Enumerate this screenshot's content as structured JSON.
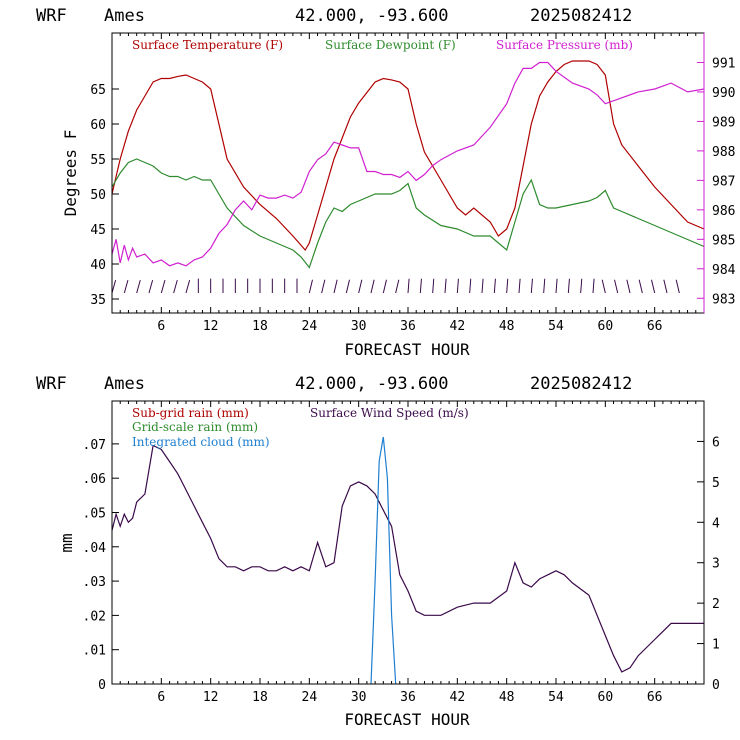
{
  "charts": [
    {
      "header": {
        "model": "WRF",
        "site": "Ames",
        "coords": "42.000, -93.600",
        "init": "2025082412"
      },
      "xlabel": "FORECAST HOUR",
      "ylabel_left": "Degrees F",
      "legend": [
        {
          "label": "Surface Temperature (F)",
          "color": "#b00000"
        },
        {
          "label": "Surface Dewpoint (F)",
          "color": "#2e8b2e"
        },
        {
          "label": "Surface Pressure (mb)",
          "color": "#d020d0"
        }
      ]
    },
    {
      "header": {
        "model": "WRF",
        "site": "Ames",
        "coords": "42.000, -93.600",
        "init": "2025082412"
      },
      "xlabel": "FORECAST HOUR",
      "ylabel_left": "mm",
      "legend": [
        {
          "label": "Sub-grid rain (mm)",
          "color": "#b00000"
        },
        {
          "label": "Grid-scale rain (mm)",
          "color": "#2e8b2e"
        },
        {
          "label": "Integrated cloud (mm)",
          "color": "#1e7fd0"
        },
        {
          "label": "Surface Wind Speed (m/s)",
          "color": "#3a0a4a"
        }
      ]
    }
  ],
  "chart_data": [
    {
      "type": "line",
      "x_ticks": [
        6,
        12,
        18,
        24,
        30,
        36,
        42,
        48,
        54,
        60,
        66
      ],
      "x_tick_labels": [
        "6",
        "12",
        "18",
        "24",
        "30",
        "36",
        "42",
        "48",
        "54",
        "60",
        "66"
      ],
      "xlim": [
        0,
        72
      ],
      "ylim_left": [
        33,
        73
      ],
      "y_ticks_left": [
        35,
        40,
        45,
        50,
        55,
        60,
        65
      ],
      "ylim_right": [
        982.5,
        992
      ],
      "y_ticks_right": [
        983,
        984,
        985,
        986,
        987,
        988,
        989,
        990,
        991
      ],
      "series": [
        {
          "name": "Surface Temperature (F)",
          "color": "#b00000",
          "axis": "left",
          "x": [
            0,
            1,
            2,
            3,
            4,
            5,
            6,
            7,
            8,
            9,
            10,
            11,
            12,
            13,
            14,
            16,
            18,
            20,
            22,
            23.5,
            24,
            25,
            26,
            27,
            28,
            29,
            30,
            31,
            32,
            33,
            34,
            35,
            36,
            37,
            38,
            40,
            42,
            43,
            44,
            46,
            47,
            48,
            49,
            50,
            51,
            52,
            53,
            54,
            55,
            56,
            57,
            58,
            59,
            60,
            61,
            62,
            64,
            66,
            68,
            70,
            72
          ],
          "y": [
            50,
            55,
            59,
            62,
            64,
            66,
            66.5,
            66.5,
            66.8,
            67,
            66.5,
            66,
            65,
            60,
            55,
            51,
            48.5,
            46.5,
            44,
            42,
            43,
            47,
            51,
            55,
            58,
            61,
            63,
            64.5,
            66,
            66.5,
            66.3,
            66,
            65,
            60,
            56,
            52,
            48,
            47,
            48,
            46,
            44,
            45,
            48,
            54,
            60,
            64,
            66,
            67.5,
            68.5,
            69,
            69,
            69,
            68.5,
            67,
            60,
            57,
            54,
            51,
            48.5,
            46,
            45
          ]
        },
        {
          "name": "Surface Dewpoint (F)",
          "color": "#2e8b2e",
          "axis": "left",
          "x": [
            0,
            1,
            2,
            3,
            4,
            5,
            6,
            7,
            8,
            9,
            10,
            11,
            12,
            13,
            14,
            16,
            18,
            20,
            22,
            23,
            24,
            25,
            26,
            27,
            28,
            29,
            30,
            32,
            34,
            35,
            36,
            37,
            38,
            40,
            42,
            44,
            46,
            47,
            48,
            49,
            50,
            51,
            52,
            53,
            54,
            56,
            58,
            59,
            60,
            61,
            62,
            64,
            66,
            68,
            70,
            72
          ],
          "y": [
            51,
            53,
            54.5,
            55,
            54.5,
            54,
            53,
            52.5,
            52.5,
            52,
            52.5,
            52,
            52,
            50,
            48,
            45.5,
            44,
            43,
            42,
            41,
            39.5,
            43,
            46,
            48,
            47.5,
            48.5,
            49,
            50,
            50,
            50.5,
            51.5,
            48,
            47,
            45.5,
            45,
            44,
            44,
            43,
            42,
            46,
            50,
            52,
            48.5,
            48,
            48,
            48.5,
            49,
            49.5,
            50.5,
            48,
            47.5,
            46.5,
            45.5,
            44.5,
            43.5,
            42.5
          ]
        },
        {
          "name": "Surface Pressure (mb)",
          "color": "#d020d0",
          "axis": "right",
          "x": [
            0,
            0.5,
            1,
            1.5,
            2,
            2.5,
            3,
            4,
            5,
            6,
            7,
            8,
            9,
            10,
            11,
            12,
            13,
            14,
            15,
            16,
            17,
            18,
            19,
            20,
            21,
            22,
            23,
            24,
            25,
            26,
            27,
            28,
            29,
            30,
            31,
            32,
            33,
            34,
            35,
            36,
            37,
            38,
            39,
            40,
            42,
            44,
            46,
            48,
            49,
            50,
            51,
            52,
            53,
            54,
            56,
            58,
            59,
            60,
            62,
            64,
            66,
            68,
            70,
            72
          ],
          "y": [
            984.5,
            985,
            984.2,
            984.8,
            984.3,
            984.7,
            984.4,
            984.5,
            984.2,
            984.3,
            984.1,
            984.2,
            984.1,
            984.3,
            984.4,
            984.7,
            985.2,
            985.5,
            986,
            986.3,
            986,
            986.5,
            986.4,
            986.4,
            986.5,
            986.4,
            986.6,
            987.3,
            987.7,
            987.9,
            988.3,
            988.2,
            988.1,
            988.1,
            987.3,
            987.3,
            987.2,
            987.2,
            987.1,
            987.3,
            987,
            987.2,
            987.5,
            987.7,
            988,
            988.2,
            988.8,
            989.6,
            990.3,
            990.8,
            990.8,
            991,
            991,
            990.7,
            990.3,
            990.1,
            989.9,
            989.6,
            989.8,
            990,
            990.1,
            990.3,
            990,
            990.1
          ]
        }
      ],
      "wind_barbs": "row of wind barbs at bottom of panel"
    },
    {
      "type": "line",
      "x_ticks": [
        6,
        12,
        18,
        24,
        30,
        36,
        42,
        48,
        54,
        60,
        66
      ],
      "x_tick_labels": [
        "6",
        "12",
        "18",
        "24",
        "30",
        "36",
        "42",
        "48",
        "54",
        "60",
        "66"
      ],
      "xlim": [
        0,
        72
      ],
      "ylim_left": [
        0,
        0.0825
      ],
      "y_ticks_left": [
        0,
        0.01,
        0.02,
        0.03,
        0.04,
        0.05,
        0.06,
        0.07
      ],
      "y_tick_labels_left": [
        "0",
        ".01",
        ".02",
        ".03",
        ".04",
        ".05",
        ".06",
        ".07"
      ],
      "ylim_right": [
        0,
        7
      ],
      "y_ticks_right": [
        0,
        1,
        2,
        3,
        4,
        5,
        6
      ],
      "series": [
        {
          "name": "Surface Wind Speed (m/s)",
          "color": "#3a0a4a",
          "axis": "right",
          "x": [
            0,
            0.5,
            1,
            1.5,
            2,
            2.5,
            3,
            4,
            5,
            6,
            7,
            8,
            9,
            10,
            11,
            12,
            13,
            14,
            15,
            16,
            17,
            18,
            19,
            20,
            21,
            22,
            23,
            24,
            25,
            26,
            27,
            28,
            29,
            30,
            31,
            32,
            33,
            34,
            35,
            36,
            37,
            38,
            40,
            42,
            44,
            46,
            48,
            49,
            50,
            51,
            52,
            53,
            54,
            55,
            56,
            58,
            60,
            61,
            62,
            63,
            64,
            66,
            68,
            70,
            72
          ],
          "y": [
            3.8,
            4.2,
            3.9,
            4.2,
            4.0,
            4.1,
            4.5,
            4.7,
            5.9,
            5.8,
            5.5,
            5.2,
            4.8,
            4.4,
            4.0,
            3.6,
            3.1,
            2.9,
            2.9,
            2.8,
            2.9,
            2.9,
            2.8,
            2.8,
            2.9,
            2.8,
            2.9,
            2.8,
            3.5,
            2.9,
            3.0,
            4.4,
            4.9,
            5.0,
            4.9,
            4.7,
            4.3,
            3.9,
            2.7,
            2.3,
            1.8,
            1.7,
            1.7,
            1.9,
            2.0,
            2.0,
            2.3,
            3.0,
            2.5,
            2.4,
            2.6,
            2.7,
            2.8,
            2.7,
            2.5,
            2.2,
            1.2,
            0.7,
            0.3,
            0.4,
            0.7,
            1.1,
            1.5,
            1.5,
            1.5
          ]
        },
        {
          "name": "Integrated cloud (mm)",
          "color": "#1e7fd0",
          "axis": "left",
          "x": [
            31.5,
            32,
            32.5,
            33,
            33.5,
            34,
            34.5
          ],
          "y": [
            0,
            0.03,
            0.065,
            0.072,
            0.06,
            0.02,
            0
          ]
        }
      ]
    }
  ]
}
